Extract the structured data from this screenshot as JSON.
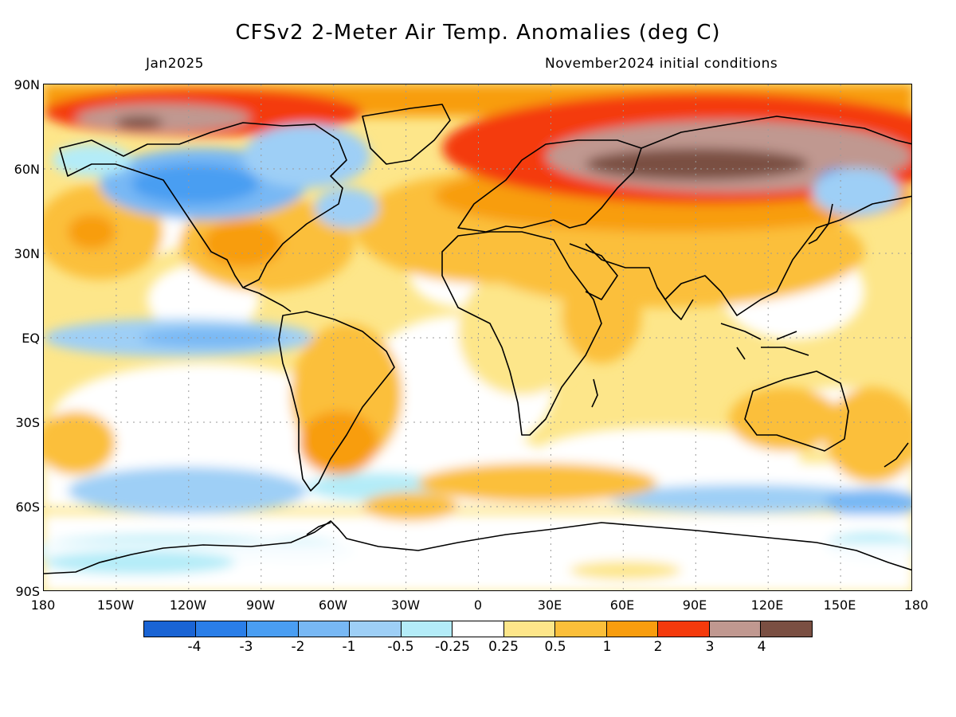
{
  "header": {
    "title": "CFSv2 2-Meter Air Temp. Anomalies (deg C)",
    "valid_month": "Jan2025",
    "init_conditions": "November2024 initial conditions"
  },
  "map": {
    "lat_labels": [
      "90N",
      "60N",
      "30N",
      "EQ",
      "30S",
      "60S",
      "90S"
    ],
    "lon_labels": [
      "180",
      "150W",
      "120W",
      "90W",
      "60W",
      "30W",
      "0",
      "30E",
      "60E",
      "90E",
      "120E",
      "150E",
      "180"
    ],
    "ocean_land_base": "#ffffff"
  },
  "colorbar": {
    "levels": [
      "-4",
      "-3",
      "-2",
      "-1",
      "-0.5",
      "-0.25",
      "0.25",
      "0.5",
      "1",
      "2",
      "3",
      "4"
    ],
    "colors": [
      "#1a64d4",
      "#2a7ee8",
      "#4a9ef2",
      "#78b8f4",
      "#9ecff6",
      "#b4ecf8",
      "#ffffff",
      "#fde68a",
      "#fbbf3a",
      "#f89d0e",
      "#f43a0c",
      "#c09890",
      "#7a4f42"
    ]
  }
}
